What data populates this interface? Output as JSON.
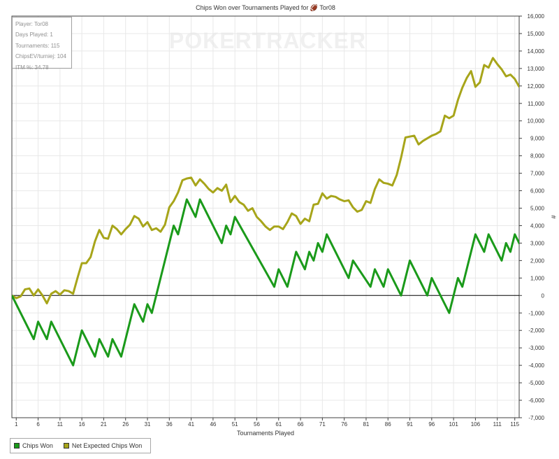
{
  "colors": {
    "chips_won": "#1a9a1a",
    "net_expected": "#a7a51a",
    "grid": "#e8e8e8",
    "axis": "#404040",
    "zero_line": "#000000"
  },
  "stats": [
    "Player: Tor08",
    "Days Played: 1",
    "Tournaments: 115",
    "ChipsEV/turniej: 104",
    "ITM %: 34.78"
  ],
  "watermark": "POKERTRACKER",
  "chart_data": {
    "type": "line",
    "title": "Chips Won over Tournaments Played for 🏈 Tor08",
    "xlabel": "Tournaments Played",
    "ylabel": "#",
    "xlim": [
      0,
      116
    ],
    "ylim": [
      -7000,
      16000
    ],
    "x_ticks": [
      1,
      6,
      11,
      16,
      21,
      26,
      31,
      36,
      41,
      46,
      51,
      56,
      61,
      66,
      71,
      76,
      81,
      86,
      91,
      96,
      101,
      106,
      111,
      115
    ],
    "y_ticks": [
      -7000,
      -6000,
      -5000,
      -4000,
      -3000,
      -2000,
      -1000,
      0,
      1000,
      2000,
      3000,
      4000,
      5000,
      6000,
      7000,
      8000,
      9000,
      10000,
      11000,
      12000,
      13000,
      14000,
      15000,
      16000
    ],
    "y_tick_labels": [
      "-7,000",
      "-6,000",
      "-5,000",
      "-4,000",
      "-3,000",
      "-2,000",
      "-1,000",
      "0",
      "1,000",
      "2,000",
      "3,000",
      "4,000",
      "5,000",
      "6,000",
      "7,000",
      "8,000",
      "9,000",
      "10,000",
      "11,000",
      "12,000",
      "13,000",
      "14,000",
      "15,000",
      "16,000"
    ],
    "grid": true,
    "legend_position": "bottom-left",
    "series": [
      {
        "name": "Chips Won",
        "points": [
          [
            0,
            0
          ],
          [
            5,
            -2500
          ],
          [
            6,
            -1500
          ],
          [
            8,
            -2500
          ],
          [
            9,
            -1500
          ],
          [
            14,
            -4000
          ],
          [
            16,
            -2000
          ],
          [
            19,
            -3500
          ],
          [
            20,
            -2500
          ],
          [
            22,
            -3500
          ],
          [
            23,
            -2500
          ],
          [
            25,
            -3500
          ],
          [
            28,
            -500
          ],
          [
            30,
            -1500
          ],
          [
            31,
            -500
          ],
          [
            32,
            -1000
          ],
          [
            37,
            4000
          ],
          [
            38,
            3500
          ],
          [
            40,
            5500
          ],
          [
            42,
            4500
          ],
          [
            43,
            5500
          ],
          [
            48,
            3000
          ],
          [
            49,
            4000
          ],
          [
            50,
            3500
          ],
          [
            51,
            4500
          ],
          [
            60,
            500
          ],
          [
            61,
            1500
          ],
          [
            63,
            500
          ],
          [
            65,
            2500
          ],
          [
            67,
            1500
          ],
          [
            68,
            2500
          ],
          [
            69,
            2000
          ],
          [
            70,
            3000
          ],
          [
            71,
            2500
          ],
          [
            72,
            3500
          ],
          [
            77,
            1000
          ],
          [
            78,
            2000
          ],
          [
            82,
            500
          ],
          [
            83,
            1500
          ],
          [
            85,
            500
          ],
          [
            86,
            1500
          ],
          [
            89,
            0
          ],
          [
            91,
            2000
          ],
          [
            95,
            0
          ],
          [
            96,
            1000
          ],
          [
            100,
            -1000
          ],
          [
            102,
            1000
          ],
          [
            103,
            500
          ],
          [
            106,
            3500
          ],
          [
            108,
            2500
          ],
          [
            109,
            3500
          ],
          [
            112,
            2000
          ],
          [
            113,
            3000
          ],
          [
            114,
            2500
          ],
          [
            115,
            3500
          ],
          [
            117,
            2500
          ]
        ]
      },
      {
        "name": "Net Expected Chips Won",
        "points": [
          [
            0,
            0
          ],
          [
            1,
            -150
          ],
          [
            2,
            -50
          ],
          [
            3,
            350
          ],
          [
            4,
            400
          ],
          [
            5,
            0
          ],
          [
            6,
            350
          ],
          [
            7,
            0
          ],
          [
            8,
            -450
          ],
          [
            9,
            100
          ],
          [
            10,
            250
          ],
          [
            11,
            50
          ],
          [
            12,
            300
          ],
          [
            13,
            250
          ],
          [
            14,
            100
          ],
          [
            15,
            1000
          ],
          [
            16,
            1850
          ],
          [
            17,
            1850
          ],
          [
            18,
            2200
          ],
          [
            19,
            3100
          ],
          [
            20,
            3750
          ],
          [
            21,
            3300
          ],
          [
            22,
            3250
          ],
          [
            23,
            4000
          ],
          [
            24,
            3800
          ],
          [
            25,
            3500
          ],
          [
            26,
            3800
          ],
          [
            27,
            4050
          ],
          [
            28,
            4550
          ],
          [
            29,
            4400
          ],
          [
            30,
            3950
          ],
          [
            31,
            4200
          ],
          [
            32,
            3750
          ],
          [
            33,
            3850
          ],
          [
            34,
            3650
          ],
          [
            35,
            4050
          ],
          [
            36,
            5050
          ],
          [
            37,
            5400
          ],
          [
            38,
            5900
          ],
          [
            39,
            6600
          ],
          [
            40,
            6700
          ],
          [
            41,
            6750
          ],
          [
            42,
            6300
          ],
          [
            43,
            6650
          ],
          [
            44,
            6400
          ],
          [
            45,
            6100
          ],
          [
            46,
            5900
          ],
          [
            47,
            6150
          ],
          [
            48,
            6000
          ],
          [
            49,
            6350
          ],
          [
            50,
            5350
          ],
          [
            51,
            5700
          ],
          [
            52,
            5350
          ],
          [
            53,
            5200
          ],
          [
            54,
            4850
          ],
          [
            55,
            5000
          ],
          [
            56,
            4500
          ],
          [
            57,
            4250
          ],
          [
            58,
            3950
          ],
          [
            59,
            3750
          ],
          [
            60,
            3950
          ],
          [
            61,
            3950
          ],
          [
            62,
            3800
          ],
          [
            63,
            4200
          ],
          [
            64,
            4700
          ],
          [
            65,
            4550
          ],
          [
            66,
            4100
          ],
          [
            67,
            4400
          ],
          [
            68,
            4250
          ],
          [
            69,
            5200
          ],
          [
            70,
            5250
          ],
          [
            71,
            5850
          ],
          [
            72,
            5550
          ],
          [
            73,
            5700
          ],
          [
            74,
            5650
          ],
          [
            75,
            5500
          ],
          [
            76,
            5400
          ],
          [
            77,
            5450
          ],
          [
            78,
            5050
          ],
          [
            79,
            4800
          ],
          [
            80,
            4900
          ],
          [
            81,
            5400
          ],
          [
            82,
            5300
          ],
          [
            83,
            6100
          ],
          [
            84,
            6650
          ],
          [
            85,
            6450
          ],
          [
            86,
            6400
          ],
          [
            87,
            6300
          ],
          [
            88,
            6900
          ],
          [
            89,
            7900
          ],
          [
            90,
            9050
          ],
          [
            91,
            9100
          ],
          [
            92,
            9150
          ],
          [
            93,
            8650
          ],
          [
            94,
            8850
          ],
          [
            95,
            9000
          ],
          [
            96,
            9150
          ],
          [
            97,
            9250
          ],
          [
            98,
            9400
          ],
          [
            99,
            10300
          ],
          [
            100,
            10150
          ],
          [
            101,
            10300
          ],
          [
            102,
            11200
          ],
          [
            103,
            11900
          ],
          [
            104,
            12450
          ],
          [
            105,
            12850
          ],
          [
            106,
            11950
          ],
          [
            107,
            12200
          ],
          [
            108,
            13200
          ],
          [
            109,
            13050
          ],
          [
            110,
            13600
          ],
          [
            111,
            13250
          ],
          [
            112,
            12950
          ],
          [
            113,
            12550
          ],
          [
            114,
            12650
          ],
          [
            115,
            12400
          ],
          [
            116,
            11950
          ],
          [
            117,
            11900
          ]
        ]
      }
    ]
  }
}
